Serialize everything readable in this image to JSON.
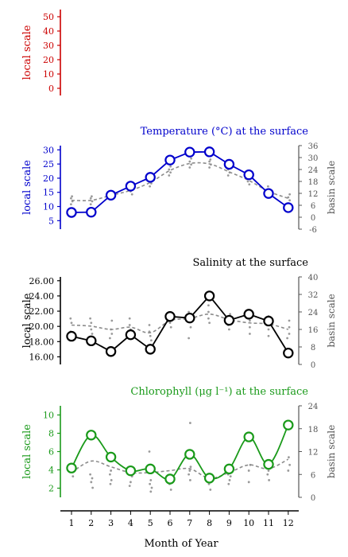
{
  "colors": {
    "red": "#cc0000",
    "blue": "#0000cc",
    "black": "#000000",
    "green": "#1a9a1a",
    "gray": "#8c8c8c"
  },
  "chart_data": [
    {
      "type": "line",
      "panel": "top",
      "title": "",
      "ylabel": "local scale",
      "ylim": [
        -5,
        55
      ],
      "yticks": [
        0,
        10,
        20,
        30,
        40,
        50
      ],
      "color": "red",
      "x": [],
      "series": []
    },
    {
      "type": "line",
      "panel": "temperature",
      "title": "Temperature (°C) at the surface",
      "ylabel": "local scale",
      "ylabel_right": "basin scale",
      "ylim": [
        2,
        31.5
      ],
      "yticks": [
        5,
        10,
        15,
        20,
        25,
        30
      ],
      "ylim_right": [
        -6,
        36
      ],
      "yticks_right": [
        -6,
        0,
        6,
        12,
        18,
        24,
        30,
        36
      ],
      "color": "blue",
      "x": [
        1,
        2,
        3,
        4,
        5,
        6,
        7,
        8,
        9,
        10,
        11,
        12
      ],
      "series": [
        {
          "axis": "local",
          "style": "solid line with open circles",
          "values": [
            7.9,
            8.0,
            14.0,
            17.2,
            20.3,
            26.4,
            29.2,
            29.3,
            24.9,
            21.2,
            14.6,
            9.6
          ]
        },
        {
          "axis": "basin",
          "style": "dashed",
          "values": [
            8.5,
            8.5,
            11.0,
            13.5,
            17.5,
            23.5,
            27.0,
            26.8,
            22.8,
            18.5,
            13.0,
            9.5
          ]
        }
      ],
      "basin_points": [
        [
          1,
          6.5
        ],
        [
          1,
          8
        ],
        [
          1,
          9.5
        ],
        [
          1,
          10.5
        ],
        [
          2,
          6.5
        ],
        [
          2,
          8
        ],
        [
          2,
          9.5
        ],
        [
          2,
          10.5
        ],
        [
          3,
          9
        ],
        [
          3,
          10.5
        ],
        [
          3,
          12
        ],
        [
          3,
          13
        ],
        [
          4,
          11.5
        ],
        [
          4,
          13
        ],
        [
          4,
          14.5
        ],
        [
          4,
          16
        ],
        [
          5,
          15.5
        ],
        [
          5,
          17
        ],
        [
          5,
          18.5
        ],
        [
          5,
          19.5
        ],
        [
          6,
          21
        ],
        [
          6,
          22.5
        ],
        [
          6,
          24
        ],
        [
          6,
          25.5
        ],
        [
          7,
          25
        ],
        [
          7,
          26.5
        ],
        [
          7,
          28
        ],
        [
          7,
          29.5
        ],
        [
          8,
          25
        ],
        [
          8,
          26.5
        ],
        [
          8,
          28
        ],
        [
          8,
          29
        ],
        [
          9,
          21
        ],
        [
          9,
          22.5
        ],
        [
          9,
          24
        ],
        [
          9,
          25
        ],
        [
          10,
          16.5
        ],
        [
          10,
          18
        ],
        [
          10,
          19.5
        ],
        [
          10,
          21
        ],
        [
          11,
          11
        ],
        [
          11,
          12.5
        ],
        [
          11,
          14
        ],
        [
          11,
          15.5
        ],
        [
          12,
          7
        ],
        [
          12,
          8.5
        ],
        [
          12,
          10
        ],
        [
          12,
          11.5
        ]
      ]
    },
    {
      "type": "line",
      "panel": "salinity",
      "title": "Salinity at the surface",
      "ylabel": "local scale",
      "ylabel_right": "basin scale",
      "ylim": [
        15,
        26.5
      ],
      "yticks": [
        16,
        18,
        20,
        22,
        24,
        26
      ],
      "ytick_labels": [
        "16.00",
        "18.00",
        "20.00",
        "22.00",
        "24.00",
        "26.00"
      ],
      "ylim_right": [
        0,
        40
      ],
      "yticks_right": [
        0,
        8,
        16,
        24,
        32,
        40
      ],
      "color": "black",
      "x": [
        1,
        2,
        3,
        4,
        5,
        6,
        7,
        8,
        9,
        10,
        11,
        12
      ],
      "series": [
        {
          "axis": "local",
          "style": "solid line with open circles",
          "values": [
            18.7,
            18.1,
            16.7,
            18.9,
            17.0,
            21.3,
            21.1,
            24.0,
            20.8,
            21.6,
            20.7,
            16.5
          ]
        },
        {
          "axis": "basin",
          "style": "dashed",
          "values": [
            18,
            17.5,
            16,
            17,
            14.5,
            20,
            21,
            23,
            20.5,
            19,
            18.5,
            16
          ]
        }
      ],
      "basin_points": [
        [
          1,
          13
        ],
        [
          1,
          15
        ],
        [
          1,
          19
        ],
        [
          1,
          21
        ],
        [
          2,
          14
        ],
        [
          2,
          16
        ],
        [
          2,
          19
        ],
        [
          2,
          21
        ],
        [
          3,
          12
        ],
        [
          3,
          14
        ],
        [
          3,
          16
        ],
        [
          3,
          20
        ],
        [
          4,
          13
        ],
        [
          4,
          16
        ],
        [
          4,
          18
        ],
        [
          4,
          21
        ],
        [
          5,
          11
        ],
        [
          5,
          13
        ],
        [
          5,
          15
        ],
        [
          5,
          18
        ],
        [
          6,
          17
        ],
        [
          6,
          19
        ],
        [
          6,
          21
        ],
        [
          6,
          22
        ],
        [
          7,
          12
        ],
        [
          7,
          17
        ],
        [
          7,
          21
        ],
        [
          7,
          24
        ],
        [
          8,
          19
        ],
        [
          8,
          21
        ],
        [
          8,
          24
        ],
        [
          8,
          27
        ],
        [
          9,
          16
        ],
        [
          9,
          18
        ],
        [
          9,
          20
        ],
        [
          9,
          23
        ],
        [
          10,
          14
        ],
        [
          10,
          17
        ],
        [
          10,
          20
        ],
        [
          10,
          22
        ],
        [
          11,
          13
        ],
        [
          11,
          16
        ],
        [
          11,
          19
        ],
        [
          11,
          22
        ],
        [
          12,
          12
        ],
        [
          12,
          14
        ],
        [
          12,
          17
        ],
        [
          12,
          20
        ]
      ]
    },
    {
      "type": "line",
      "panel": "chlorophyll",
      "title": "Chlorophyll (μg l⁻¹) at the surface",
      "ylabel": "local scale",
      "ylabel_right": "basin scale",
      "ylim": [
        1,
        11
      ],
      "yticks": [
        2,
        4,
        6,
        8,
        10
      ],
      "ylim_right": [
        0,
        24
      ],
      "yticks_right": [
        0,
        6,
        12,
        18,
        24
      ],
      "color": "green",
      "x": [
        1,
        2,
        3,
        4,
        5,
        6,
        7,
        8,
        9,
        10,
        11,
        12
      ],
      "series": [
        {
          "axis": "local",
          "style": "solid line with open circles",
          "values": [
            4.2,
            7.8,
            5.4,
            3.9,
            4.1,
            3.0,
            5.7,
            3.1,
            4.1,
            7.6,
            4.6,
            8.9
          ]
        },
        {
          "axis": "basin",
          "style": "dashed",
          "values": [
            6.5,
            9.5,
            8.0,
            6.5,
            6.5,
            7.0,
            7.5,
            5.0,
            6.5,
            8.5,
            7.5,
            10.0
          ]
        }
      ],
      "basin_points": [
        [
          1,
          5.5
        ],
        [
          1,
          7
        ],
        [
          1,
          8.5
        ],
        [
          2,
          2.5
        ],
        [
          2,
          4
        ],
        [
          2,
          5
        ],
        [
          2,
          6
        ],
        [
          3,
          3.5
        ],
        [
          3,
          4.5
        ],
        [
          3,
          6
        ],
        [
          3,
          7
        ],
        [
          4,
          3
        ],
        [
          4,
          4
        ],
        [
          4,
          5.5
        ],
        [
          5,
          1.5
        ],
        [
          5,
          2.5
        ],
        [
          5,
          3.5
        ],
        [
          5,
          4.5
        ],
        [
          5,
          12
        ],
        [
          6,
          2
        ],
        [
          6,
          3.5
        ],
        [
          6,
          5
        ],
        [
          7,
          4.5
        ],
        [
          7,
          6
        ],
        [
          7,
          7
        ],
        [
          7,
          8
        ],
        [
          7,
          19.5
        ],
        [
          8,
          2
        ],
        [
          8,
          3.5
        ],
        [
          8,
          4.5
        ],
        [
          8,
          5
        ],
        [
          9,
          3.5
        ],
        [
          9,
          4.5
        ],
        [
          9,
          5.5
        ],
        [
          9,
          6
        ],
        [
          10,
          4
        ],
        [
          10,
          7
        ],
        [
          10,
          8.5
        ],
        [
          11,
          4.5
        ],
        [
          11,
          6
        ],
        [
          11,
          7
        ],
        [
          11,
          8
        ],
        [
          12,
          7
        ],
        [
          12,
          8.5
        ],
        [
          12,
          10.5
        ]
      ]
    }
  ],
  "xaxis": {
    "label": "Month of Year",
    "ticks": [
      "1",
      "2",
      "3",
      "4",
      "5",
      "6",
      "7",
      "8",
      "9",
      "10",
      "11",
      "12"
    ]
  }
}
